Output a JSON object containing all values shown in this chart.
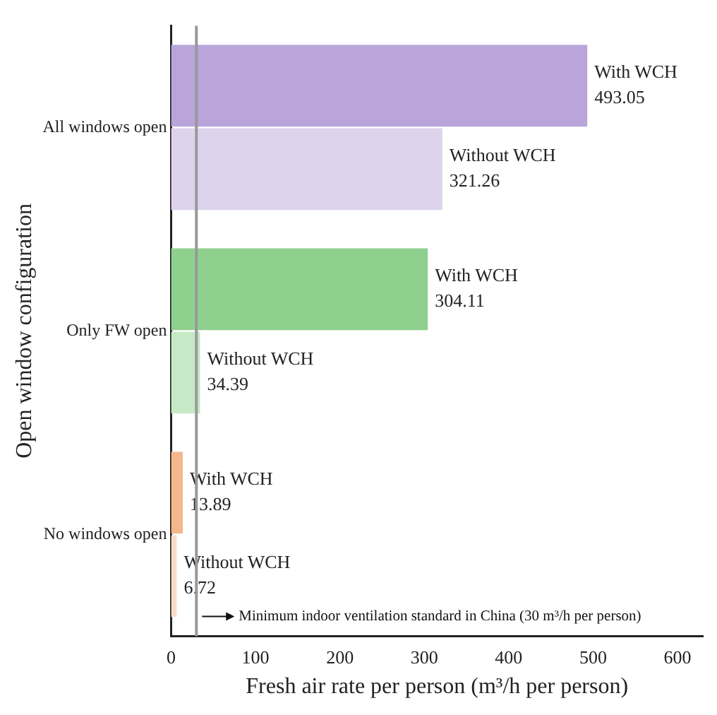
{
  "chart_data": {
    "type": "bar",
    "orientation": "horizontal",
    "ylabel": "Open window configuration",
    "xlabel": "Fresh air rate per person (m³/h per person)",
    "categories": [
      "All windows open",
      "Only FW open",
      "No windows open"
    ],
    "series": [
      {
        "name": "With WCH",
        "colors": [
          "#b9a5da",
          "#8fd08f",
          "#f4b88c"
        ],
        "values": [
          493.05,
          304.11,
          13.89
        ]
      },
      {
        "name": "Without WCH",
        "colors": [
          "#ddd3ec",
          "#c6eac6",
          "#fadcc6"
        ],
        "values": [
          321.26,
          34.39,
          6.72
        ]
      }
    ],
    "xlim": [
      0,
      630
    ],
    "xticks": [
      0,
      100,
      200,
      300,
      400,
      500,
      600
    ],
    "ref_lines": [
      {
        "axis": "x",
        "value": 30,
        "label": "Minimum indoor ventilation standard in China (30 m³/h per person)",
        "color": "#999999"
      }
    ],
    "data_labels": true,
    "grid": false,
    "legend": false
  }
}
